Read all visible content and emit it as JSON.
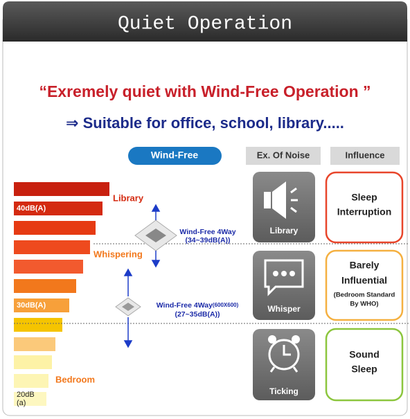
{
  "header": {
    "title": "Quiet Operation"
  },
  "headline": {
    "line1": "“Exremely quiet with Wind-Free Operation ”",
    "line2": "⇒ Suitable for office, school, library....."
  },
  "columns": {
    "wind_free": "Wind-Free",
    "noise": "Ex. Of Noise",
    "influence": "Influence"
  },
  "levels": {
    "db40": "40dB(A)",
    "db30": "30dB(A)",
    "db20_line1": "20dB",
    "db20_line2": "(a)"
  },
  "markers": {
    "library": "Library",
    "whispering": "Whispering",
    "bedroom": "Bedroom"
  },
  "units": [
    {
      "name": "Wind-Free 4Way",
      "range": "(34~39dB(A))"
    },
    {
      "name": "Wind-Free 4Way",
      "size": "(600X600)",
      "range": "(27~35dB(A))"
    }
  ],
  "noise": [
    "Library",
    "Whisper",
    "Ticking"
  ],
  "influence": [
    {
      "lines": [
        "Sleep",
        "Interruption"
      ]
    },
    {
      "lines": [
        "Barely",
        "Influential"
      ],
      "note": [
        "(Bedroom Standard",
        "By WHO)"
      ]
    },
    {
      "lines": [
        "Sound",
        "Sleep"
      ]
    }
  ]
}
